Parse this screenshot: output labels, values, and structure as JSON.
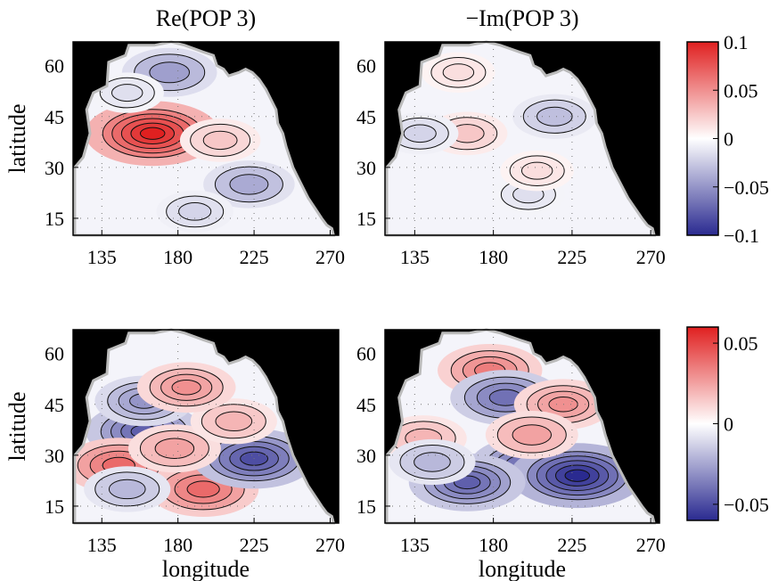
{
  "chart_data": [
    {
      "type": "heatmap",
      "title": "Re(POP 3)",
      "xlabel": "",
      "ylabel": "latitude",
      "xticks": [
        "135",
        "180",
        "225",
        "270"
      ],
      "yticks": [
        "15",
        "30",
        "45",
        "60"
      ],
      "xlim": [
        118,
        275
      ],
      "ylim": [
        10,
        67
      ],
      "land_color": "#000000",
      "features": [
        {
          "lon": 165,
          "lat": 40,
          "value": 0.1
        },
        {
          "lon": 175,
          "lat": 58,
          "value": -0.045
        },
        {
          "lon": 205,
          "lat": 38,
          "value": 0.025
        },
        {
          "lon": 222,
          "lat": 25,
          "value": -0.04
        },
        {
          "lon": 190,
          "lat": 17,
          "value": -0.02
        },
        {
          "lon": 150,
          "lat": 52,
          "value": -0.015
        }
      ]
    },
    {
      "type": "heatmap",
      "title": "−Im(POP 3)",
      "xlabel": "",
      "ylabel": "",
      "xticks": [
        "135",
        "180",
        "225",
        "270"
      ],
      "yticks": [
        "15",
        "30",
        "45",
        "60"
      ],
      "xlim": [
        118,
        275
      ],
      "ylim": [
        10,
        67
      ],
      "land_color": "#000000",
      "features": [
        {
          "lon": 215,
          "lat": 45,
          "value": -0.03
        },
        {
          "lon": 165,
          "lat": 40,
          "value": 0.025
        },
        {
          "lon": 138,
          "lat": 40,
          "value": -0.02
        },
        {
          "lon": 200,
          "lat": 22,
          "value": -0.015
        },
        {
          "lon": 205,
          "lat": 29,
          "value": 0.015
        },
        {
          "lon": 160,
          "lat": 58,
          "value": 0.015
        }
      ]
    },
    {
      "type": "heatmap",
      "title": "",
      "xlabel": "longitude",
      "ylabel": "latitude",
      "xticks": [
        "135",
        "180",
        "225",
        "270"
      ],
      "yticks": [
        "15",
        "30",
        "45",
        "60"
      ],
      "xlim": [
        118,
        275
      ],
      "ylim": [
        10,
        67
      ],
      "land_color": "#000000",
      "features": [
        {
          "lon": 160,
          "lat": 37,
          "value": -0.045
        },
        {
          "lon": 145,
          "lat": 27,
          "value": 0.04
        },
        {
          "lon": 195,
          "lat": 20,
          "value": 0.04
        },
        {
          "lon": 225,
          "lat": 29,
          "value": -0.05
        },
        {
          "lon": 160,
          "lat": 46,
          "value": -0.03
        },
        {
          "lon": 178,
          "lat": 32,
          "value": 0.025
        },
        {
          "lon": 150,
          "lat": 20,
          "value": -0.02
        },
        {
          "lon": 213,
          "lat": 40,
          "value": 0.02
        },
        {
          "lon": 185,
          "lat": 50,
          "value": 0.03
        }
      ]
    },
    {
      "type": "heatmap",
      "title": "",
      "xlabel": "longitude",
      "ylabel": "",
      "xticks": [
        "135",
        "180",
        "225",
        "270"
      ],
      "yticks": [
        "15",
        "30",
        "45",
        "60"
      ],
      "xlim": [
        118,
        275
      ],
      "ylim": [
        10,
        67
      ],
      "land_color": "#000000",
      "features": [
        {
          "lon": 178,
          "lat": 55,
          "value": 0.035
        },
        {
          "lon": 187,
          "lat": 47,
          "value": -0.04
        },
        {
          "lon": 220,
          "lat": 45,
          "value": 0.03
        },
        {
          "lon": 200,
          "lat": 27,
          "value": -0.045
        },
        {
          "lon": 228,
          "lat": 24,
          "value": -0.06
        },
        {
          "lon": 165,
          "lat": 22,
          "value": -0.045
        },
        {
          "lon": 140,
          "lat": 35,
          "value": 0.02
        },
        {
          "lon": 145,
          "lat": 28,
          "value": -0.02
        },
        {
          "lon": 202,
          "lat": 36,
          "value": 0.025
        }
      ]
    }
  ],
  "colorbars": [
    {
      "ticks": [
        "0.1",
        "0.05",
        "0",
        "−0.05",
        "−0.1"
      ],
      "vmin": -0.1,
      "vmax": 0.1
    },
    {
      "ticks": [
        "0.05",
        "0",
        "−0.05"
      ],
      "vmin": -0.06,
      "vmax": 0.06
    }
  ],
  "colors": {
    "positive": "#e02020",
    "negative": "#2a2a90",
    "neutral": "#ffffff",
    "land": "#000000"
  }
}
